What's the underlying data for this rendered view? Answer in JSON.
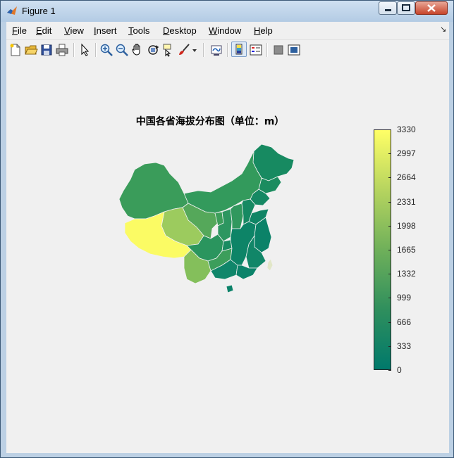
{
  "window": {
    "title": "Figure 1",
    "icon": "matlab-icon"
  },
  "menu": [
    "File",
    "Edit",
    "View",
    "Insert",
    "Tools",
    "Desktop",
    "Window",
    "Help"
  ],
  "menu_underline": [
    "F",
    "E",
    "V",
    "I",
    "T",
    "D",
    "W",
    "H"
  ],
  "toolbar": {
    "buttons": [
      "new-figure-icon",
      "open-file-icon",
      "save-icon",
      "print-icon",
      "edit-plot-arrow-icon",
      "zoom-in-icon",
      "zoom-out-icon",
      "pan-hand-icon",
      "rotate-3d-icon",
      "data-cursor-icon",
      "brush-icon",
      "link-plot-icon",
      "insert-colorbar-icon",
      "insert-legend-icon",
      "hide-plot-tools-icon",
      "show-plot-tools-icon"
    ]
  },
  "plot": {
    "title": "中国各省海拔分布图（单位：m）"
  },
  "colorbar": {
    "min": 0,
    "max": 3330,
    "ticks": [
      "3330",
      "2997",
      "2664",
      "2331",
      "1998",
      "1665",
      "1332",
      "999",
      "666",
      "333",
      "0"
    ],
    "colors": {
      "low": "#00796b",
      "mid": "#6fb05a",
      "high": "#ffff66"
    }
  }
}
